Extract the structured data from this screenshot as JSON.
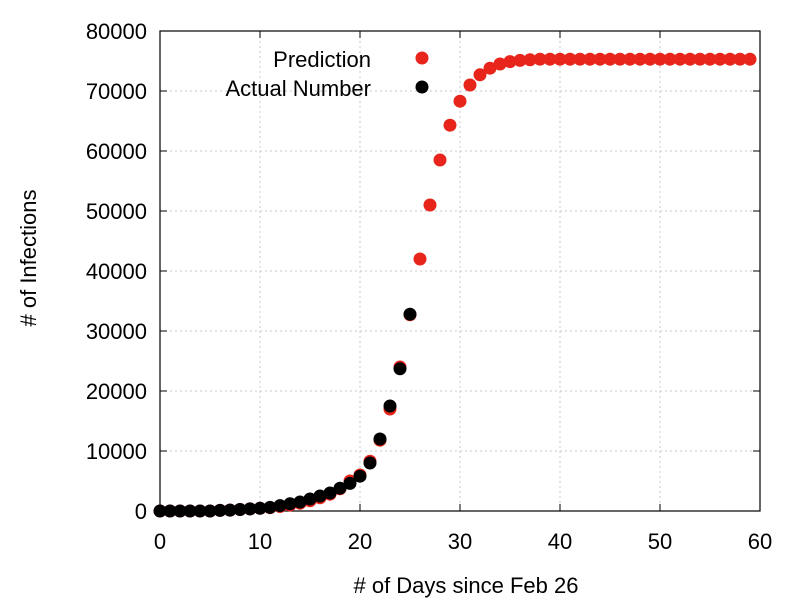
{
  "chart_data": {
    "type": "scatter",
    "xlabel": "# of Days since Feb 26",
    "ylabel": "# of Infections",
    "xlim": [
      0,
      60
    ],
    "ylim": [
      0,
      80000
    ],
    "xticks": [
      0,
      10,
      20,
      30,
      40,
      50,
      60
    ],
    "yticks": [
      0,
      10000,
      20000,
      30000,
      40000,
      50000,
      60000,
      70000,
      80000
    ],
    "grid": true,
    "legend_position": "top-left",
    "series": [
      {
        "name": "Prediction",
        "color": "#e8251b",
        "x": [
          0,
          1,
          2,
          3,
          4,
          5,
          6,
          7,
          8,
          9,
          10,
          11,
          12,
          13,
          14,
          15,
          16,
          17,
          18,
          19,
          20,
          21,
          22,
          23,
          24,
          25,
          26,
          27,
          28,
          29,
          30,
          31,
          32,
          33,
          34,
          35,
          36,
          37,
          38,
          39,
          40,
          41,
          42,
          43,
          44,
          45,
          46,
          47,
          48,
          49,
          50,
          51,
          52,
          53,
          54,
          55,
          56,
          57,
          58,
          59
        ],
        "y": [
          0,
          0,
          0,
          0,
          0,
          0,
          100,
          150,
          250,
          350,
          450,
          550,
          750,
          1000,
          1300,
          1700,
          2200,
          2800,
          3700,
          5000,
          6000,
          8300,
          11800,
          17000,
          24000,
          32700,
          42000,
          51000,
          58500,
          64300,
          68300,
          71000,
          72700,
          73800,
          74500,
          74900,
          75100,
          75200,
          75300,
          75300,
          75300,
          75300,
          75300,
          75300,
          75300,
          75300,
          75300,
          75300,
          75300,
          75300,
          75300,
          75300,
          75300,
          75300,
          75300,
          75300,
          75300,
          75300,
          75300,
          75300
        ]
      },
      {
        "name": "Actual Number",
        "color": "#000000",
        "x": [
          0,
          1,
          2,
          3,
          4,
          5,
          6,
          7,
          8,
          9,
          10,
          11,
          12,
          13,
          14,
          15,
          16,
          17,
          18,
          19,
          20,
          21,
          22,
          23,
          24,
          25
        ],
        "y": [
          0,
          0,
          0,
          0,
          0,
          0,
          100,
          150,
          250,
          350,
          450,
          600,
          900,
          1200,
          1500,
          2000,
          2500,
          3000,
          3800,
          4600,
          5800,
          8000,
          12000,
          17500,
          23700,
          32800
        ]
      }
    ]
  }
}
